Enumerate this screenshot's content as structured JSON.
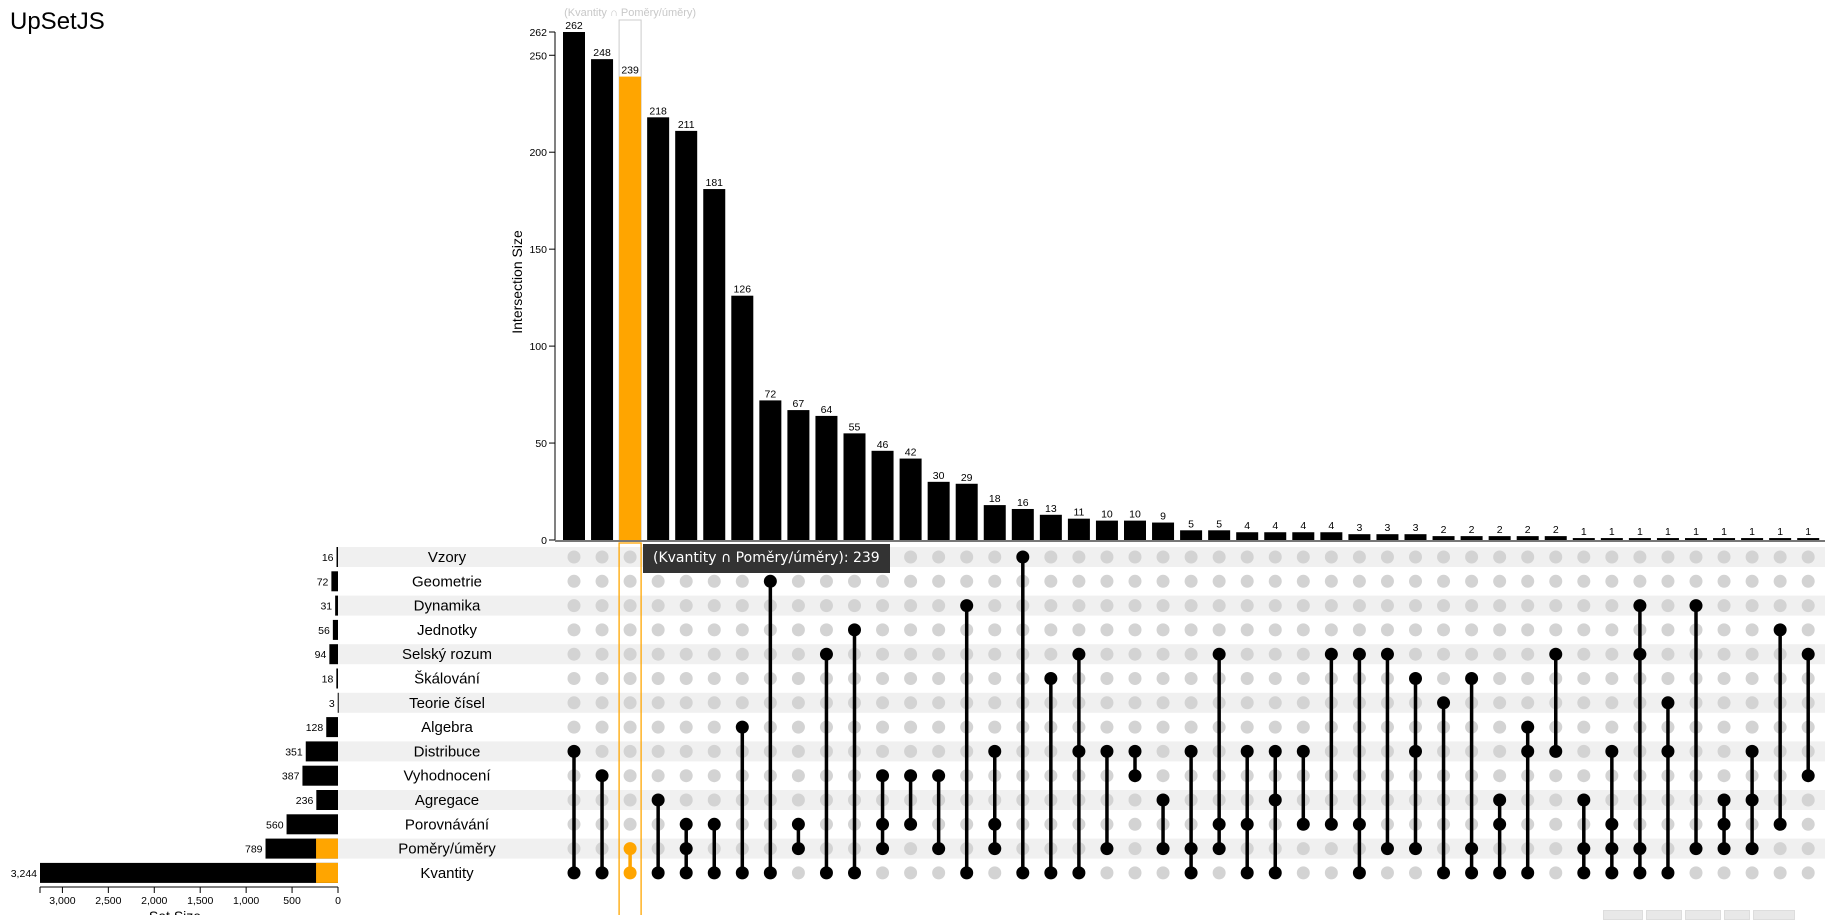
{
  "title": "UpSetJS",
  "chart_data": {
    "type": "upset",
    "ylabel": "Intersection Size",
    "xlabel": "Set Size",
    "y_ticks": [
      0,
      50,
      100,
      150,
      200,
      250,
      262
    ],
    "y_tick_labels": [
      "0",
      "50",
      "100",
      "150",
      "200",
      "250",
      "262"
    ],
    "x_ticks": [
      3000,
      2500,
      2000,
      1500,
      1000,
      500,
      0
    ],
    "x_tick_labels": [
      "3,000",
      "2,500",
      "2,000",
      "1,500",
      "1,000",
      "500",
      "0"
    ],
    "ylim": [
      0,
      262
    ],
    "xlim": [
      0,
      3244
    ],
    "sets": [
      {
        "name": "Vzory",
        "size": 16,
        "size_label": "16"
      },
      {
        "name": "Geometrie",
        "size": 72,
        "size_label": "72"
      },
      {
        "name": "Dynamika",
        "size": 31,
        "size_label": "31"
      },
      {
        "name": "Jednotky",
        "size": 56,
        "size_label": "56"
      },
      {
        "name": "Selský rozum",
        "size": 94,
        "size_label": "94"
      },
      {
        "name": "Škálování",
        "size": 18,
        "size_label": "18"
      },
      {
        "name": "Teorie čísel",
        "size": 3,
        "size_label": "3"
      },
      {
        "name": "Algebra",
        "size": 128,
        "size_label": "128"
      },
      {
        "name": "Distribuce",
        "size": 351,
        "size_label": "351"
      },
      {
        "name": "Vyhodnocení",
        "size": 387,
        "size_label": "387"
      },
      {
        "name": "Agregace",
        "size": 236,
        "size_label": "236"
      },
      {
        "name": "Porovnávání",
        "size": 560,
        "size_label": "560"
      },
      {
        "name": "Poměry/úměry",
        "size": 789,
        "size_label": "789"
      },
      {
        "name": "Kvantity",
        "size": 3244,
        "size_label": "3,244"
      }
    ],
    "intersections": [
      {
        "size": 262,
        "sets": [
          8,
          13
        ]
      },
      {
        "size": 248,
        "sets": [
          9,
          13
        ]
      },
      {
        "size": 239,
        "sets": [
          12,
          13
        ],
        "highlighted": true
      },
      {
        "size": 218,
        "sets": [
          10,
          13
        ]
      },
      {
        "size": 211,
        "sets": [
          11,
          12,
          13
        ]
      },
      {
        "size": 181,
        "sets": [
          11,
          13
        ]
      },
      {
        "size": 126,
        "sets": [
          7,
          13
        ]
      },
      {
        "size": 72,
        "sets": [
          1,
          13
        ]
      },
      {
        "size": 67,
        "sets": [
          11,
          12
        ]
      },
      {
        "size": 64,
        "sets": [
          4,
          13
        ]
      },
      {
        "size": 55,
        "sets": [
          3,
          13
        ]
      },
      {
        "size": 46,
        "sets": [
          9,
          11,
          12
        ]
      },
      {
        "size": 42,
        "sets": [
          9,
          11
        ]
      },
      {
        "size": 30,
        "sets": [
          9,
          12
        ]
      },
      {
        "size": 29,
        "sets": [
          2,
          13
        ]
      },
      {
        "size": 18,
        "sets": [
          8,
          11,
          12
        ]
      },
      {
        "size": 16,
        "sets": [
          0,
          13
        ]
      },
      {
        "size": 13,
        "sets": [
          5,
          13
        ]
      },
      {
        "size": 11,
        "sets": [
          4,
          8,
          13
        ]
      },
      {
        "size": 10,
        "sets": [
          8,
          12
        ]
      },
      {
        "size": 10,
        "sets": [
          8,
          9
        ]
      },
      {
        "size": 9,
        "sets": [
          10,
          12
        ]
      },
      {
        "size": 5,
        "sets": [
          8,
          12,
          13
        ]
      },
      {
        "size": 5,
        "sets": [
          4,
          11,
          12
        ]
      },
      {
        "size": 4,
        "sets": [
          8,
          11,
          13
        ]
      },
      {
        "size": 4,
        "sets": [
          8,
          10,
          13
        ]
      },
      {
        "size": 4,
        "sets": [
          8,
          11
        ]
      },
      {
        "size": 4,
        "sets": [
          4,
          11
        ]
      },
      {
        "size": 3,
        "sets": [
          4,
          11,
          13
        ]
      },
      {
        "size": 3,
        "sets": [
          4,
          12
        ]
      },
      {
        "size": 3,
        "sets": [
          5,
          8,
          12
        ]
      },
      {
        "size": 2,
        "sets": [
          6,
          13
        ]
      },
      {
        "size": 2,
        "sets": [
          5,
          12,
          13
        ]
      },
      {
        "size": 2,
        "sets": [
          10,
          11,
          13
        ]
      },
      {
        "size": 2,
        "sets": [
          7,
          8,
          13
        ]
      },
      {
        "size": 2,
        "sets": [
          4,
          8
        ]
      },
      {
        "size": 1,
        "sets": [
          10,
          12,
          13
        ]
      },
      {
        "size": 1,
        "sets": [
          8,
          11,
          12,
          13
        ]
      },
      {
        "size": 1,
        "sets": [
          2,
          4,
          12,
          13
        ]
      },
      {
        "size": 1,
        "sets": [
          6,
          8,
          13
        ]
      },
      {
        "size": 1,
        "sets": [
          2,
          12
        ]
      },
      {
        "size": 1,
        "sets": [
          10,
          11,
          12
        ]
      },
      {
        "size": 1,
        "sets": [
          8,
          10,
          12
        ]
      },
      {
        "size": 1,
        "sets": [
          3,
          11
        ]
      },
      {
        "size": 1,
        "sets": [
          4,
          9
        ]
      }
    ],
    "selection": {
      "label": "(Kvantity ∩ Poměry/úměry)",
      "size": 239
    },
    "colors": {
      "bar": "#000000",
      "selection": "#ffa500",
      "inactive_dot": "#d3d3d3",
      "stripe": "#f0f0f0",
      "hover_outline": "#cccccc"
    }
  },
  "tooltip": {
    "text": "(Kvantity ∩ Poměry/úměry): 239"
  }
}
